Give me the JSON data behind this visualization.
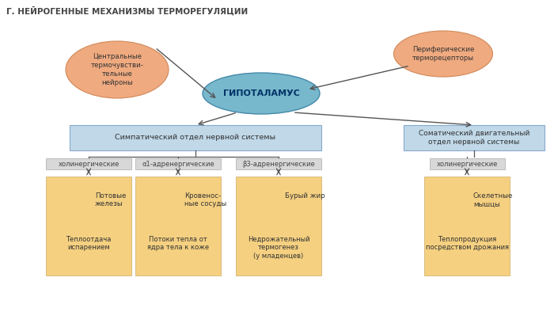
{
  "title": "Г. НЕЙРОГЕННЫЕ МЕХАНИЗМЫ ТЕРМОРЕГУЛЯЦИИ",
  "title_color": "#444444",
  "title_fontsize": 7.5,
  "bg_color": "#ffffff",
  "oval_left_text": "Центральные\nтермочувстви-\nтельные\nнейроны",
  "oval_right_text": "Периферические\nтерморецепторы",
  "oval_color": "#f0aa80",
  "oval_edge_color": "#d08858",
  "oval_text_color": "#333333",
  "center_oval_text": "ГИПОТАЛАМУС",
  "center_oval_color": "#78b8cc",
  "center_oval_edge": "#4488aa",
  "center_oval_text_color": "#003366",
  "box_symp_text": "Симпатический отдел нервной системы",
  "box_somat_text": "Соматический двигательный\nотдел нервной системы",
  "box_color": "#c0d8e8",
  "box_edge_color": "#88aacc",
  "box_text_color": "#333333",
  "sub_labels": [
    "холинергические",
    "α1-адренергические",
    "β3-адренергические",
    "холинергические"
  ],
  "sub_label_color": "#444444",
  "sub_box_color": "#d8d8d8",
  "sub_box_edge": "#aaaaaa",
  "organ_labels": [
    "Потовые\nжелезы",
    "Кровенос-\nные сосуды",
    "Бурый жир",
    "Скелетные\nмышцы"
  ],
  "result_labels": [
    "Теплоотдача\nиспарением",
    "Потоки тепла от\nядра тела к коже",
    "Недрожательный\nтермогенез\n(у младенцев)",
    "Теплопродукция\nпосредством дрожания"
  ],
  "organ_box_color": "#f5d080",
  "organ_text_color": "#333333",
  "arrow_color": "#555555",
  "lw_main": 1.0,
  "lw_sub": 0.8
}
